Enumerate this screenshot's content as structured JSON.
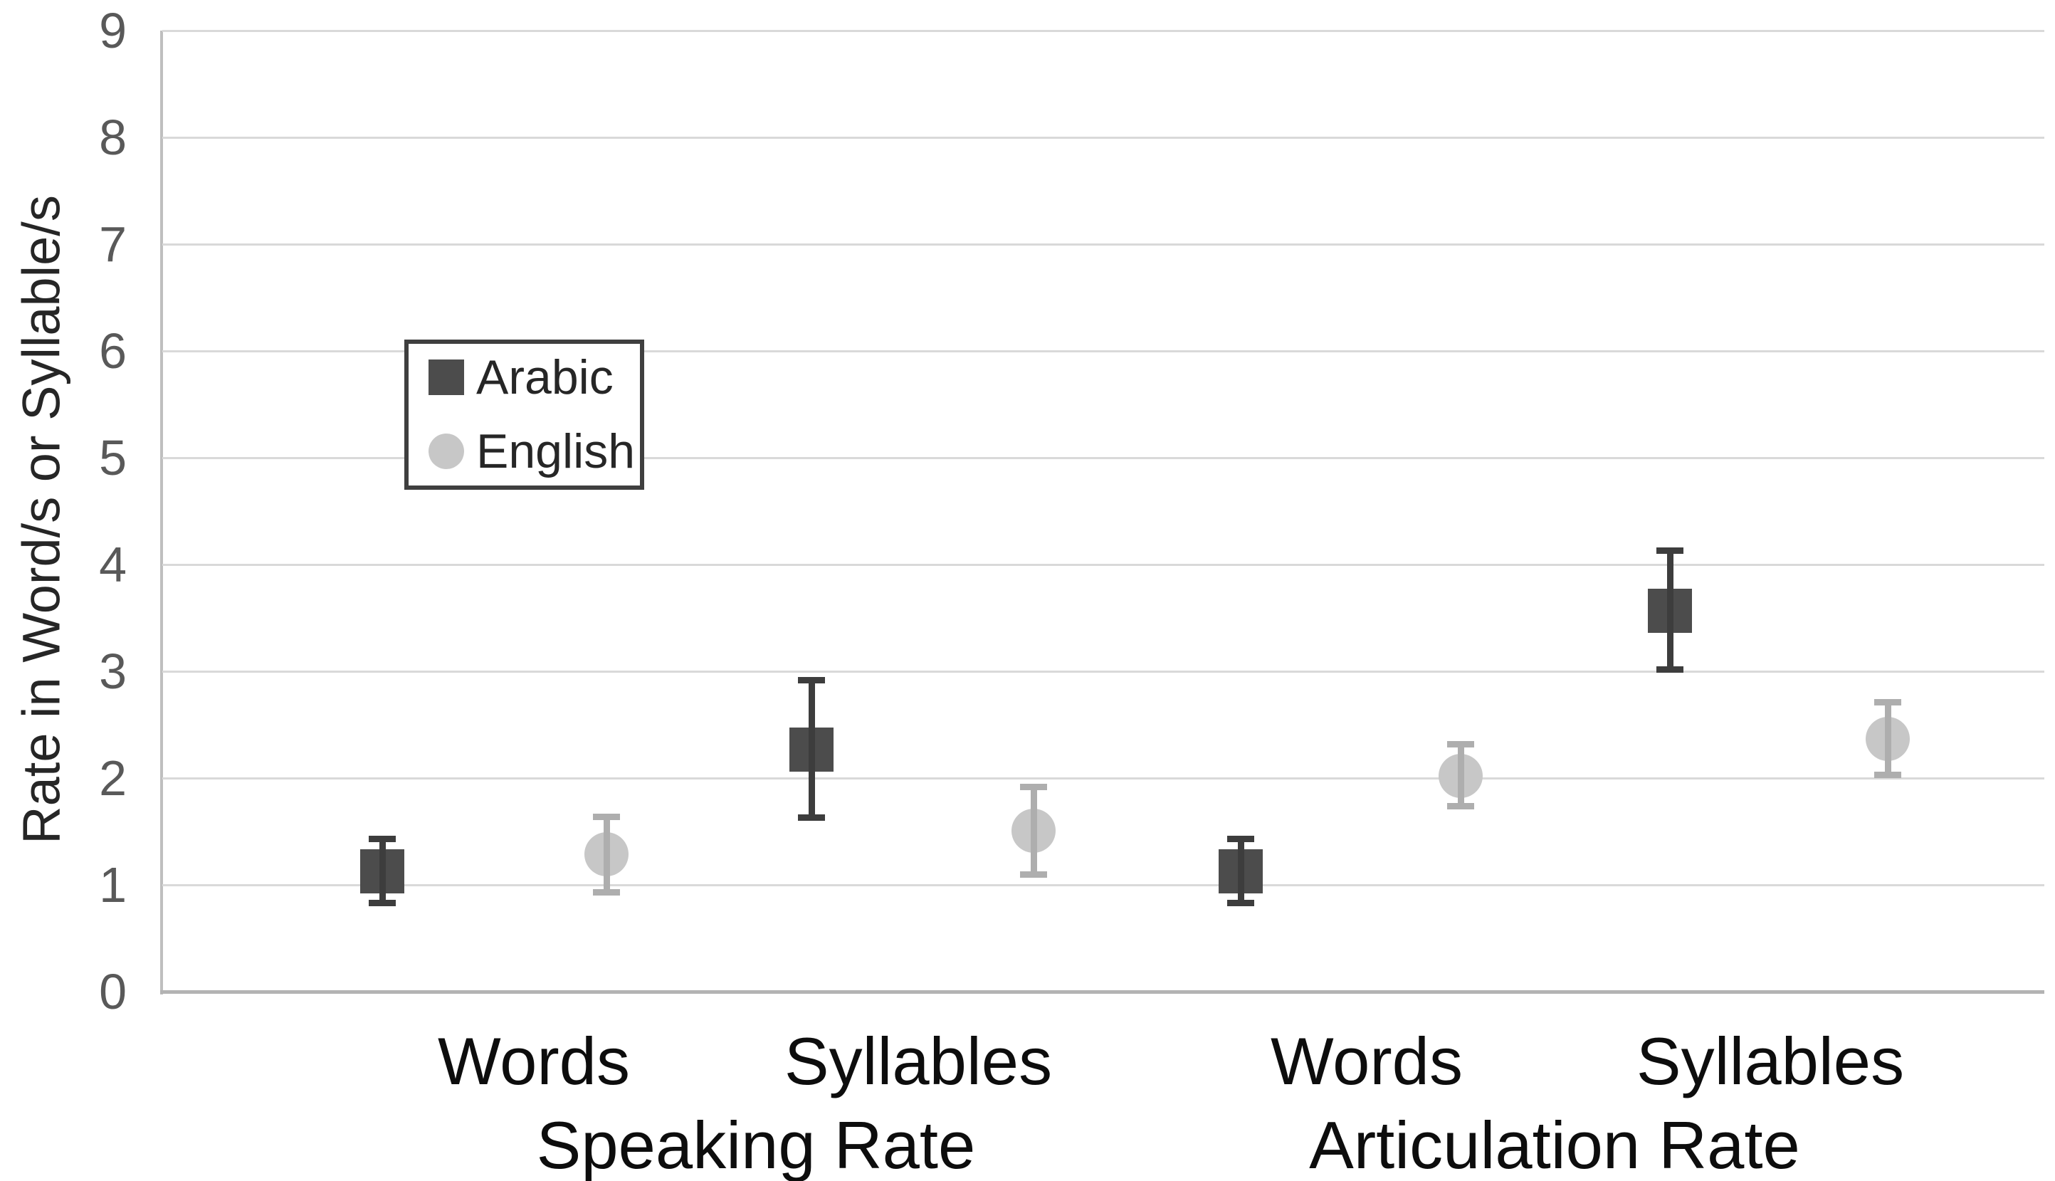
{
  "chart_data": {
    "type": "scatter",
    "title": "",
    "xlabel": "",
    "ylabel": "Rate in Word/s or Syllable/s",
    "ylim": [
      0,
      9
    ],
    "y_ticks": [
      0,
      1,
      2,
      3,
      4,
      5,
      6,
      7,
      8,
      9
    ],
    "grid": "horizontal-on",
    "legend_position": "inside-upper-left",
    "categories": [
      "Words",
      "Syllables",
      "Words",
      "Syllables"
    ],
    "group_labels": [
      "Speaking Rate",
      "Articulation Rate"
    ],
    "series": [
      {
        "name": "Arabic",
        "marker": "square",
        "color": "#4c4c4c",
        "error_color": "#3d3d3d",
        "points": [
          {
            "category": "Words / Speaking Rate",
            "mean": 1.13,
            "upper": 1.46,
            "lower": 0.8
          },
          {
            "category": "Syllables / Speaking Rate",
            "mean": 2.27,
            "upper": 2.95,
            "lower": 1.6
          },
          {
            "category": "Words / Articulation Rate",
            "mean": 1.13,
            "upper": 1.46,
            "lower": 0.8
          },
          {
            "category": "Syllables / Articulation Rate",
            "mean": 3.57,
            "upper": 4.16,
            "lower": 2.99
          }
        ]
      },
      {
        "name": "English",
        "marker": "circle",
        "color": "#c7c7c7",
        "error_color": "#aeaeae",
        "points": [
          {
            "category": "Words / Speaking Rate",
            "mean": 1.29,
            "upper": 1.67,
            "lower": 0.9
          },
          {
            "category": "Syllables / Speaking Rate",
            "mean": 1.51,
            "upper": 1.95,
            "lower": 1.07
          },
          {
            "category": "Words / Articulation Rate",
            "mean": 2.02,
            "upper": 2.35,
            "lower": 1.71
          },
          {
            "category": "Syllables / Articulation Rate",
            "mean": 2.37,
            "upper": 2.74,
            "lower": 2.0
          }
        ]
      }
    ]
  },
  "legend": {
    "items": [
      {
        "label": "Arabic"
      },
      {
        "label": "English"
      }
    ]
  }
}
